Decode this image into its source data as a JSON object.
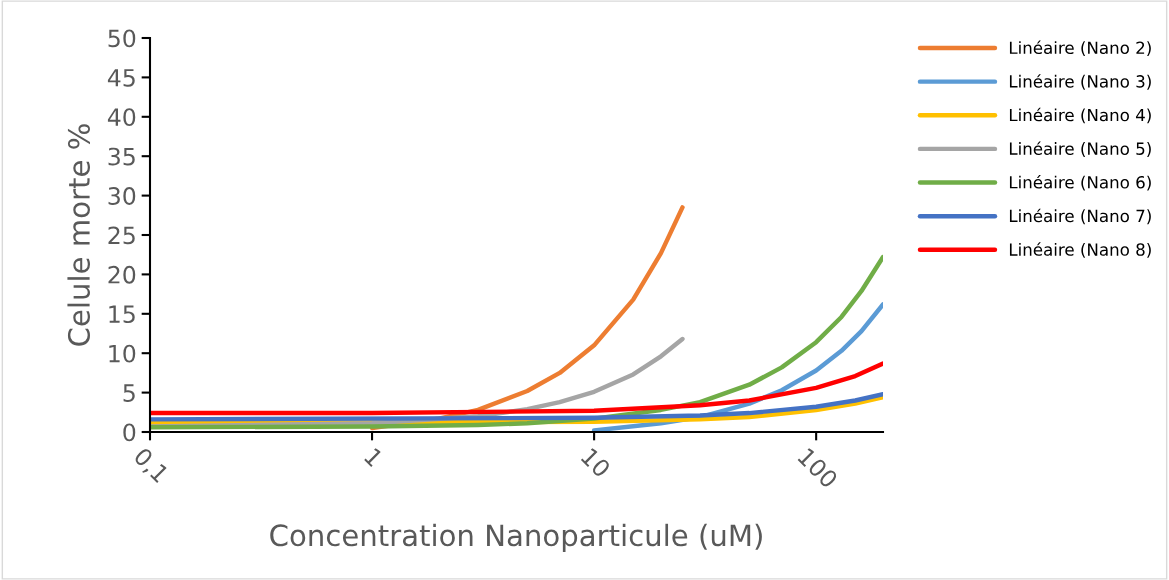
{
  "chart_data": {
    "type": "line",
    "xlabel": "Concentration Nanoparticule (uM)",
    "ylabel": "Celule morte %",
    "log": "x",
    "grid": false,
    "legend": "right",
    "marker": "none",
    "line_style": "solid",
    "xlim": [
      0.1,
      200
    ],
    "xticks": [
      {
        "value": 0.1,
        "label": "0,1"
      },
      1,
      10,
      100
    ],
    "ylim": [
      0,
      50
    ],
    "yticks": [
      0,
      5,
      10,
      15,
      20,
      25,
      30,
      35,
      40,
      45,
      50
    ],
    "series": [
      {
        "name": "Linéaire (Nano 2)",
        "color": "#ed7d31",
        "x": [
          1,
          2,
          3,
          5,
          7,
          10,
          15,
          20,
          25
        ],
        "values": [
          0.5,
          1.7,
          2.8,
          5.2,
          7.5,
          11.0,
          16.8,
          22.7,
          28.5
        ]
      },
      {
        "name": "Linéaire (Nano 3)",
        "color": "#5b9bd5",
        "x": [
          10,
          20,
          30,
          50,
          70,
          100,
          130,
          160,
          200
        ],
        "values": [
          0.2,
          1.1,
          1.9,
          3.6,
          5.3,
          7.8,
          10.3,
          12.8,
          16.2
        ]
      },
      {
        "name": "Linéaire (Nano 4)",
        "color": "#ffc000",
        "x": [
          0.1,
          10,
          30,
          50,
          100,
          150,
          200
        ],
        "values": [
          1.1,
          1.3,
          1.6,
          1.9,
          2.8,
          3.6,
          4.4
        ]
      },
      {
        "name": "Linéaire (Nano 5)",
        "color": "#a5a5a5",
        "x": [
          0.1,
          1,
          3,
          5,
          7,
          10,
          15,
          20,
          25
        ],
        "values": [
          0.7,
          1.1,
          2.0,
          2.9,
          3.8,
          5.1,
          7.3,
          9.6,
          11.8
        ]
      },
      {
        "name": "Linéaire (Nano 6)",
        "color": "#70ad47",
        "x": [
          0.1,
          1,
          3,
          5,
          10,
          20,
          30,
          50,
          70,
          100,
          130,
          160,
          200
        ],
        "values": [
          0.6,
          0.7,
          0.9,
          1.1,
          1.7,
          2.8,
          3.8,
          6.0,
          8.2,
          11.4,
          14.6,
          17.9,
          22.2
        ]
      },
      {
        "name": "Linéaire (Nano 7)",
        "color": "#4472c4",
        "x": [
          0.1,
          10,
          30,
          50,
          100,
          150,
          200
        ],
        "values": [
          1.6,
          1.8,
          2.1,
          2.4,
          3.2,
          4.0,
          4.8
        ]
      },
      {
        "name": "Linéaire (Nano 8)",
        "color": "#ff0000",
        "x": [
          0.1,
          1,
          10,
          30,
          50,
          100,
          150,
          200
        ],
        "values": [
          2.4,
          2.4,
          2.7,
          3.4,
          4.0,
          5.6,
          7.1,
          8.7
        ]
      }
    ]
  }
}
